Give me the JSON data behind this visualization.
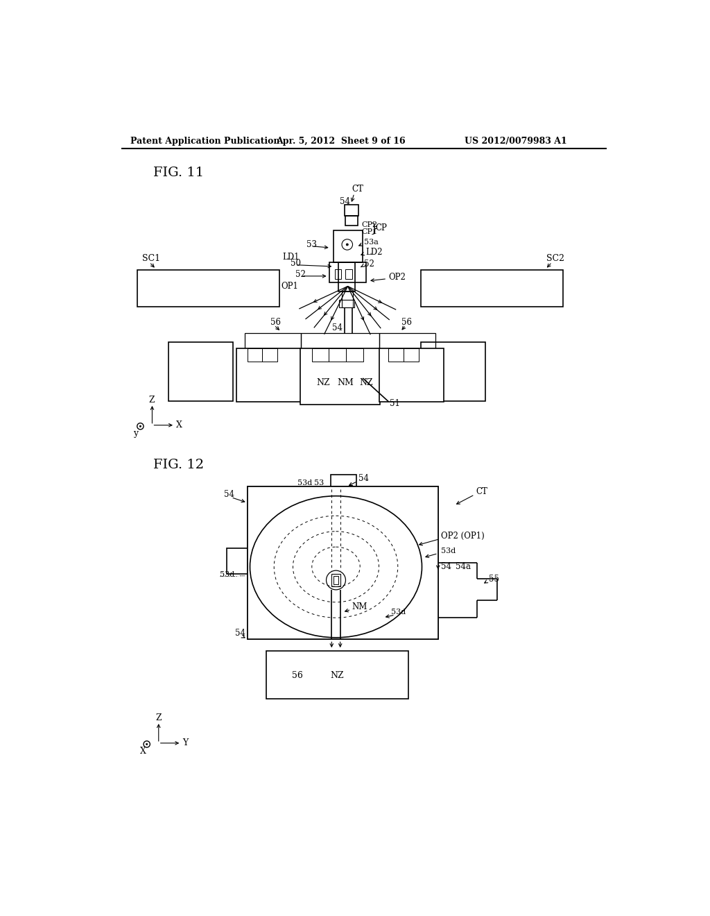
{
  "background_color": "#ffffff",
  "header_left": "Patent Application Publication",
  "header_center": "Apr. 5, 2012  Sheet 9 of 16",
  "header_right": "US 2012/0079983 A1",
  "fig11_label": "FIG. 11",
  "fig12_label": "FIG. 12",
  "line_color": "#000000",
  "line_width": 1.2,
  "font_size_header": 9,
  "font_size_tag": 8.5
}
